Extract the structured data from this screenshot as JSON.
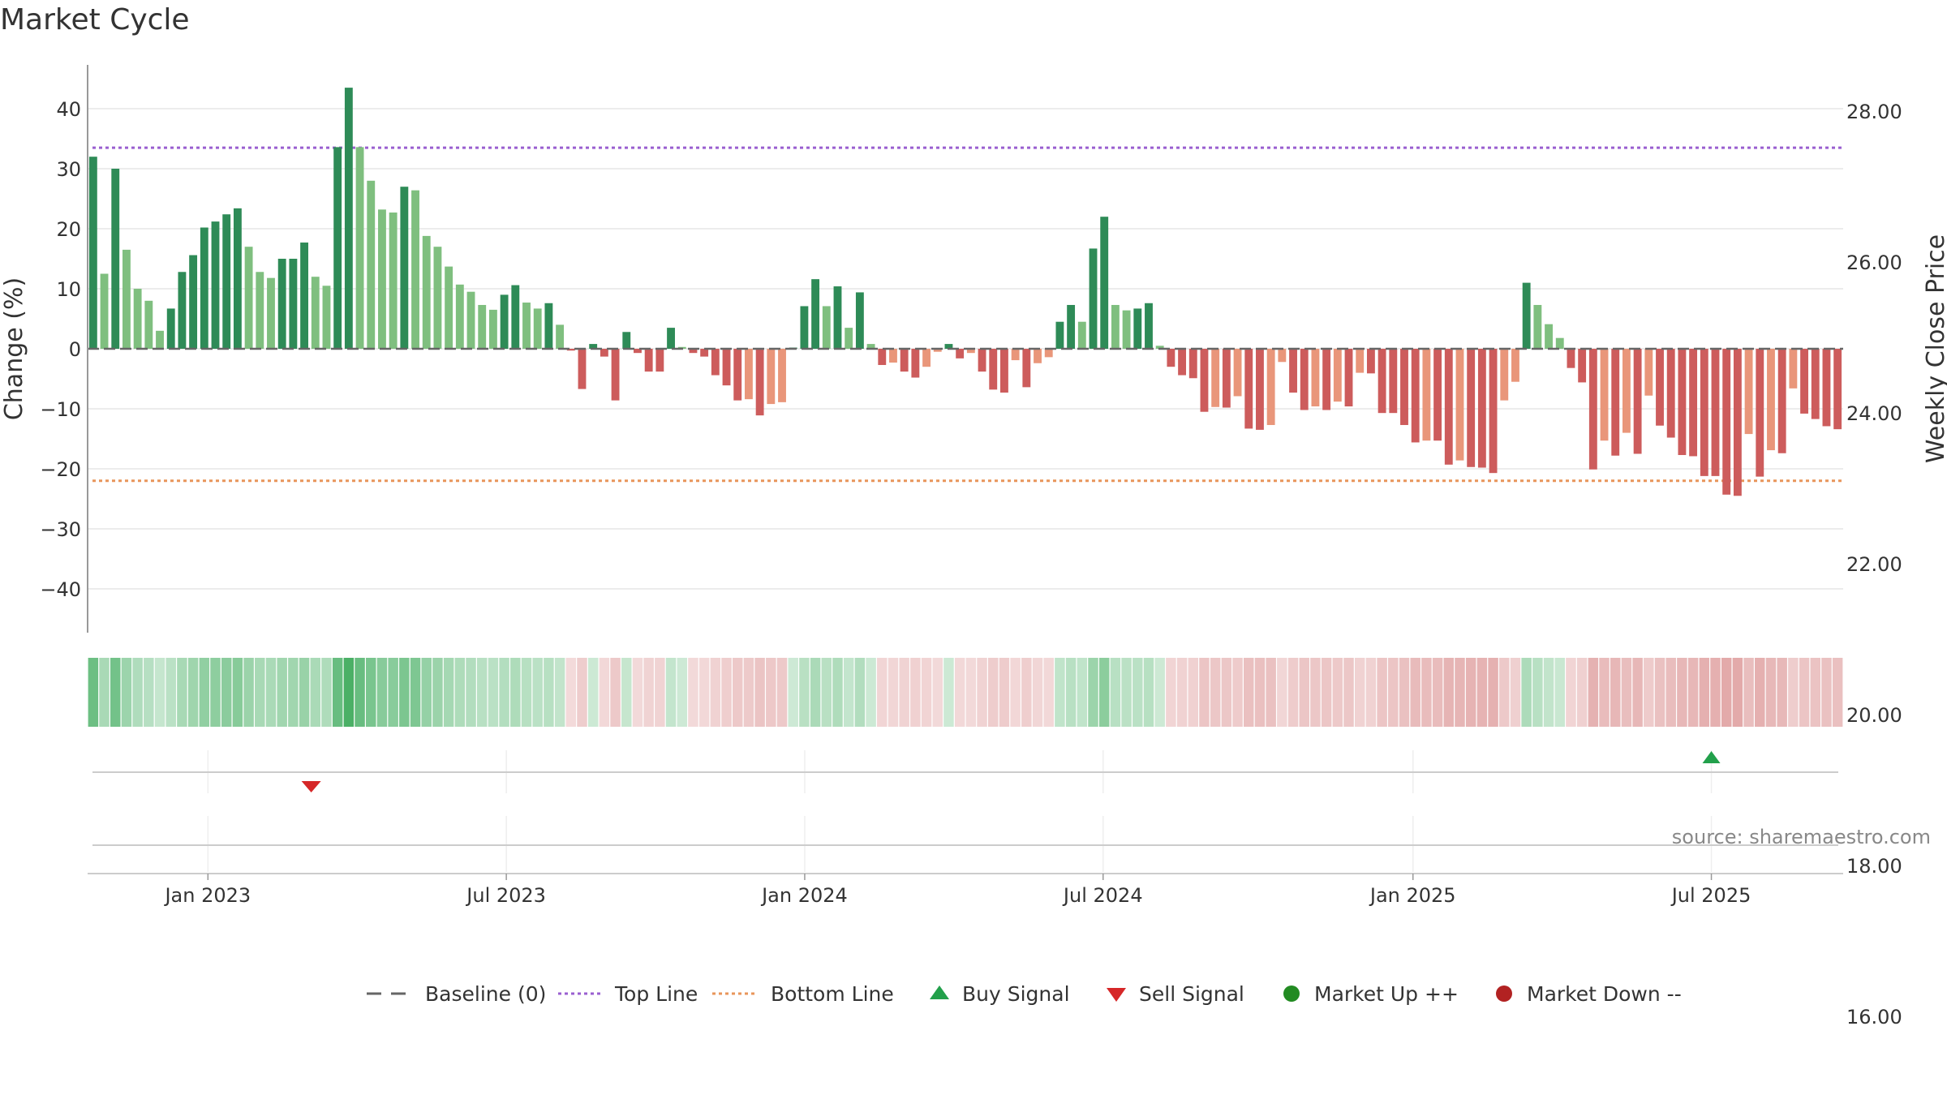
{
  "title": "Market Cycle",
  "source": "source: sharemaestro.com",
  "chart_data": {
    "type": "bar",
    "title": "Market Cycle",
    "ylabel": "Change (%)",
    "y2label": "Weekly Close Price",
    "ylim": [
      -48,
      48
    ],
    "y2lim": [
      14.12,
      28.96
    ],
    "yticks": [
      40,
      30,
      20,
      10,
      0,
      -10,
      -20,
      -30,
      -40
    ],
    "yticklabels": [
      "40",
      "30",
      "20",
      "10",
      "0",
      "−10",
      "−20",
      "−30",
      "−40"
    ],
    "y2ticks": [
      28,
      26,
      24,
      22,
      20,
      18,
      16
    ],
    "y2ticklabels": [
      "28.00",
      "26.00",
      "24.00",
      "22.00",
      "20.00",
      "18.00",
      "16.00"
    ],
    "start_date": "2022-10-24",
    "end_date": "2025-09-22",
    "xticks": [
      {
        "date": "2023-01-02",
        "label": "Jan 2023"
      },
      {
        "date": "2023-07-03",
        "label": "Jul 2023"
      },
      {
        "date": "2024-01-01",
        "label": "Jan 2024"
      },
      {
        "date": "2024-07-01",
        "label": "Jul 2024"
      },
      {
        "date": "2025-01-06",
        "label": "Jan 2025"
      },
      {
        "date": "2025-07-07",
        "label": "Jul 2025"
      }
    ],
    "top_line": 33.5,
    "bottom_line": -22,
    "grid": true,
    "legend_position": "bottom",
    "values": [
      32,
      12.5,
      30,
      16.5,
      10,
      8,
      3,
      6.7,
      12.8,
      15.6,
      20.2,
      21.2,
      22.4,
      23.4,
      17,
      12.8,
      11.8,
      15,
      15,
      17.7,
      12,
      10.5,
      33.6,
      43.5,
      33.6,
      28,
      23.2,
      22.7,
      27,
      26.4,
      18.8,
      17,
      13.7,
      10.7,
      9.5,
      7.3,
      6.5,
      9,
      10.6,
      7.7,
      6.7,
      7.6,
      4,
      -0.3,
      -6.7,
      0.8,
      -1.3,
      -8.6,
      2.8,
      -0.7,
      -3.8,
      -3.8,
      3.5,
      0.3,
      -0.7,
      -1.3,
      -4.4,
      -6.1,
      -8.6,
      -8.4,
      -11.1,
      -9.2,
      -8.9,
      0.2,
      7.1,
      11.6,
      7.1,
      10.4,
      3.5,
      9.4,
      0.8,
      -2.7,
      -2.3,
      -3.8,
      -4.8,
      -3,
      -0.5,
      0.8,
      -1.6,
      -0.7,
      -3.8,
      -6.8,
      -7.3,
      -1.9,
      -6.4,
      -2.4,
      -1.4,
      4.5,
      7.3,
      4.5,
      16.7,
      22,
      7.3,
      6.4,
      6.7,
      7.6,
      0.5,
      -3,
      -4.4,
      -4.9,
      -10.5,
      -9.7,
      -9.8,
      -7.9,
      -13.3,
      -13.5,
      -12.7,
      -2.2,
      -7.3,
      -10.2,
      -9.6,
      -10.2,
      -8.8,
      -9.6,
      -4,
      -4.1,
      -10.7,
      -10.7,
      -12.7,
      -15.6,
      -15.3,
      -15.3,
      -19.3,
      -18.6,
      -19.7,
      -19.8,
      -20.7,
      -8.6,
      -5.5,
      11,
      7.3,
      4.1,
      1.8,
      -3.2,
      -5.6,
      -20.1,
      -15.3,
      -17.8,
      -14,
      -17.5,
      -7.8,
      -12.8,
      -14.8,
      -17.7,
      -17.9,
      -21.2,
      -21.2,
      -24.3,
      -24.5,
      -14.2,
      -21.3,
      -16.9,
      -17.4,
      -6.6,
      -10.8,
      -11.7,
      -12.9,
      -13.4
    ]
  },
  "legend": [
    {
      "label": "Baseline (0)",
      "icon": "dash-gray"
    },
    {
      "label": "Top Line",
      "icon": "dotted-purple"
    },
    {
      "label": "Bottom Line",
      "icon": "dotted-orange"
    },
    {
      "label": "Buy Signal",
      "icon": "triangle-up-green"
    },
    {
      "label": "Sell Signal",
      "icon": "triangle-down-red"
    },
    {
      "label": "Market Up ++",
      "icon": "circle-green"
    },
    {
      "label": "Market Down --",
      "icon": "circle-red"
    }
  ],
  "signals": {
    "buy": [
      {
        "date": "2025-07-07"
      }
    ],
    "sell": [
      {
        "date": "2023-03-06"
      }
    ]
  },
  "colors": {
    "strong_up": "#2e8b57",
    "weak_up": "#7fbf7f",
    "strong_down": "#cd5c5c",
    "weak_down": "#e9967a",
    "top_line": "#9a5fd0",
    "bottom_line": "#e8955a",
    "baseline": "#666666",
    "buy": "#22a04b",
    "sell": "#d62728",
    "market_up": "#228b22",
    "market_down": "#b22222",
    "grid": "#e6e6e6"
  }
}
